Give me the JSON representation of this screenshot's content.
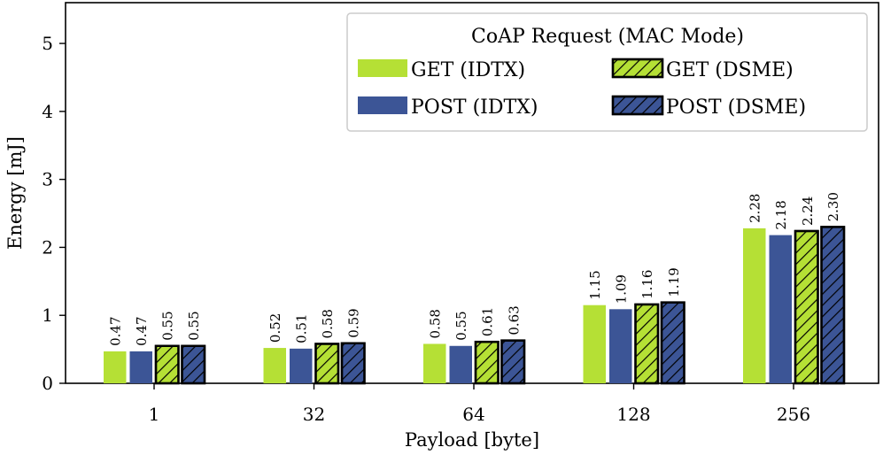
{
  "chart_data": {
    "type": "bar",
    "title": "",
    "xlabel": "Payload [byte]",
    "ylabel": "Energy [mJ]",
    "ylim": [
      0,
      5.6
    ],
    "yticks": [
      0,
      1,
      2,
      3,
      4,
      5
    ],
    "grid": false,
    "categories": [
      "1",
      "32",
      "64",
      "128",
      "256"
    ],
    "legend": {
      "title": "CoAP Request (MAC Mode)",
      "placement": "top-right",
      "columns": 2
    },
    "series": [
      {
        "name": "GET (IDTX)",
        "color": "#b5e035",
        "hatched": false,
        "values": [
          0.47,
          0.52,
          0.58,
          1.15,
          2.28
        ],
        "labels": [
          "0.47",
          "0.52",
          "0.58",
          "1.15",
          "2.28"
        ]
      },
      {
        "name": "POST (IDTX)",
        "color": "#3c5596",
        "hatched": false,
        "values": [
          0.47,
          0.51,
          0.55,
          1.09,
          2.18
        ],
        "labels": [
          "0.47",
          "0.51",
          "0.55",
          "1.09",
          "2.18"
        ]
      },
      {
        "name": "GET (DSME)",
        "color": "#b5e035",
        "hatched": true,
        "values": [
          0.55,
          0.58,
          0.61,
          1.16,
          2.24
        ],
        "labels": [
          "0.55",
          "0.58",
          "0.61",
          "1.16",
          "2.24"
        ]
      },
      {
        "name": "POST (DSME)",
        "color": "#3c5596",
        "hatched": true,
        "values": [
          0.55,
          0.59,
          0.63,
          1.19,
          2.3
        ],
        "labels": [
          "0.55",
          "0.59",
          "0.63",
          "1.19",
          "2.30"
        ]
      }
    ]
  }
}
